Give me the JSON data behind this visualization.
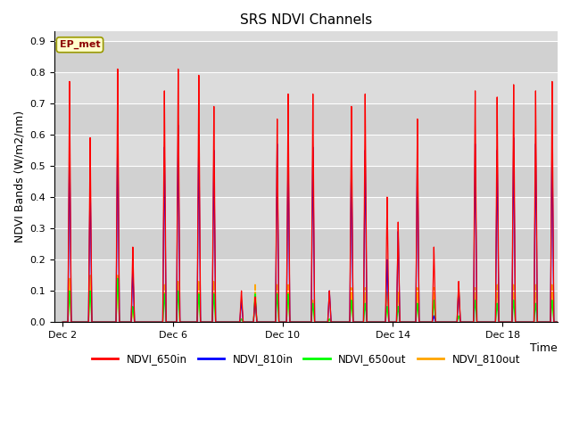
{
  "title": "SRS NDVI Channels",
  "xlabel": "Time",
  "ylabel": "NDVI Bands (W/m2/nm)",
  "ylim": [
    0.0,
    0.93
  ],
  "yticks": [
    0.0,
    0.1,
    0.2,
    0.3,
    0.4,
    0.5,
    0.6,
    0.7,
    0.8,
    0.9
  ],
  "annotation_text": "EP_met",
  "legend_labels": [
    "NDVI_650in",
    "NDVI_810in",
    "NDVI_650out",
    "NDVI_810out"
  ],
  "line_colors": [
    "red",
    "blue",
    "lime",
    "orange"
  ],
  "plot_bg_color": "#dcdcdc",
  "title_fontsize": 11,
  "label_fontsize": 9,
  "tick_fontsize": 8,
  "xticklabels": [
    "Dec 2",
    "Dec 6",
    "Dec 10",
    "Dec 14",
    "Dec 18"
  ],
  "xtick_positions": [
    0,
    4,
    8,
    12,
    16
  ],
  "xlim": [
    -0.3,
    18.0
  ],
  "total_days": 18.0,
  "spike_positions": [
    0.25,
    1.0,
    2.0,
    2.55,
    3.7,
    4.2,
    4.95,
    5.5,
    6.5,
    7.0,
    7.8,
    8.2,
    9.1,
    9.7,
    10.5,
    11.0,
    11.8,
    12.2,
    12.9,
    13.5,
    14.4,
    15.0,
    15.8,
    16.4,
    17.2,
    17.8
  ],
  "spike_650in": [
    0.77,
    0.59,
    0.81,
    0.24,
    0.74,
    0.81,
    0.79,
    0.69,
    0.1,
    0.08,
    0.65,
    0.73,
    0.73,
    0.1,
    0.69,
    0.73,
    0.4,
    0.32,
    0.65,
    0.24,
    0.13,
    0.74,
    0.72,
    0.76,
    0.74,
    0.77
  ],
  "spike_810in": [
    0.59,
    0.47,
    0.62,
    0.17,
    0.56,
    0.63,
    0.6,
    0.55,
    0.07,
    0.08,
    0.57,
    0.56,
    0.56,
    0.1,
    0.54,
    0.55,
    0.2,
    0.29,
    0.57,
    0.02,
    0.11,
    0.57,
    0.55,
    0.59,
    0.57,
    0.59
  ],
  "spike_650out": [
    0.1,
    0.1,
    0.14,
    0.05,
    0.09,
    0.1,
    0.09,
    0.09,
    0.01,
    0.09,
    0.09,
    0.09,
    0.06,
    0.01,
    0.07,
    0.06,
    0.05,
    0.05,
    0.06,
    0.07,
    0.02,
    0.07,
    0.06,
    0.07,
    0.06,
    0.07
  ],
  "spike_810out": [
    0.14,
    0.15,
    0.15,
    0.04,
    0.12,
    0.13,
    0.13,
    0.13,
    0.01,
    0.12,
    0.12,
    0.12,
    0.07,
    0.01,
    0.11,
    0.11,
    0.1,
    0.1,
    0.11,
    0.11,
    0.12,
    0.11,
    0.12,
    0.12,
    0.12,
    0.12
  ]
}
